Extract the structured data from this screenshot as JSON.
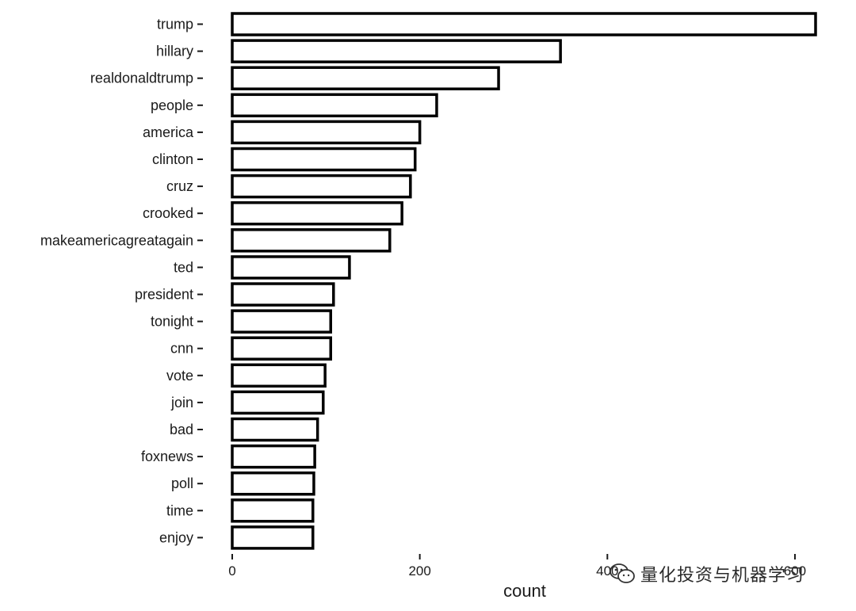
{
  "chart_data": {
    "type": "bar",
    "orientation": "horizontal",
    "categories": [
      "trump",
      "hillary",
      "realdonaldtrump",
      "people",
      "america",
      "clinton",
      "cruz",
      "crooked",
      "makeamericagreatagain",
      "ted",
      "president",
      "tonight",
      "cnn",
      "vote",
      "join",
      "bad",
      "foxnews",
      "poll",
      "time",
      "enjoy"
    ],
    "values": [
      622,
      350,
      284,
      218,
      200,
      195,
      190,
      181,
      168,
      125,
      108,
      105,
      105,
      99,
      97,
      91,
      88,
      87,
      86,
      86
    ],
    "xlabel": "count",
    "ylabel": "",
    "title": "",
    "xlim": [
      0,
      622
    ],
    "xticks": [
      0,
      200,
      400,
      600
    ],
    "xtick_labels": [
      "0",
      "200",
      "400",
      "600"
    ],
    "grid": false,
    "bar_fill": "#ffffff",
    "bar_stroke": "#000000"
  },
  "watermark": {
    "icon": "wechat-icon",
    "text": "量化投资与机器学习"
  }
}
